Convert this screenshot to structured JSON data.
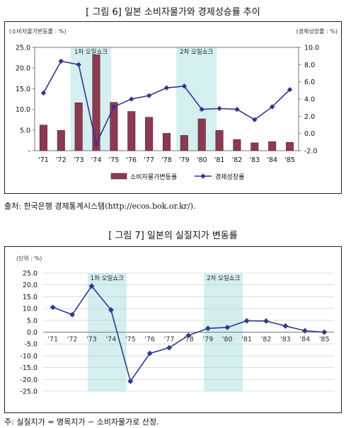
{
  "figure1": {
    "caption": "[ 그림 6]  일본 소비자물가와 경제성승률 추이",
    "source_note": "출처:  한국은행  경제통계시스템(http://ecos.bok.or.kr/).",
    "colors": {
      "bar": "#8b3a52",
      "bar_edge": "#5a2030",
      "line": "#3b2f8f",
      "shade": "#d3efef",
      "bg": "#ffffff"
    },
    "chart_data": {
      "type": "bar",
      "left_axis_label": "(소비자물가변동률 : %)",
      "right_axis_label": "(경제성장률 : %)",
      "categories": [
        "'71",
        "'72",
        "'73",
        "'74",
        "'75",
        "'76",
        "'77",
        "'78",
        "'79",
        "'80",
        "'81",
        "'82",
        "'83",
        "'84",
        "'85"
      ],
      "ylim_left": [
        0,
        25
      ],
      "left_ticks": [
        "25.0",
        "20.0",
        "15.0",
        "10.0",
        "5.0",
        "-"
      ],
      "left_tick_values": [
        25,
        20,
        15,
        10,
        5,
        0
      ],
      "ylim_right": [
        -2,
        10
      ],
      "right_ticks": [
        "10.0",
        "8.0",
        "6.0",
        "4.0",
        "2.0",
        "0.0",
        "-2.0"
      ],
      "right_tick_values": [
        10,
        8,
        6,
        4,
        2,
        0,
        -2
      ],
      "series": [
        {
          "name": "소비자물가변동률",
          "kind": "bar",
          "axis": "left",
          "values": [
            6.2,
            4.9,
            11.6,
            23.2,
            11.7,
            9.5,
            8.1,
            4.2,
            3.7,
            7.7,
            4.9,
            2.7,
            1.9,
            2.2,
            2.0
          ]
        },
        {
          "name": "경제성장률",
          "kind": "line",
          "axis": "right",
          "values": [
            4.7,
            8.4,
            8.0,
            -1.2,
            3.1,
            4.0,
            4.4,
            5.3,
            5.5,
            2.8,
            2.9,
            2.8,
            1.6,
            3.1,
            5.1
          ]
        }
      ],
      "shaded_periods": [
        {
          "label": "1차 오일쇼크",
          "from": "'73",
          "to": "'75"
        },
        {
          "label": "2차 오일쇼크",
          "from": "'79",
          "to": "'81"
        }
      ],
      "legend": {
        "placement": "bottom-center"
      }
    }
  },
  "figure2": {
    "caption": "[ 그림 7]  일본의  실질지가  변동률",
    "footnote": "주:  실질지가 = 명목지가 − 소비자물가로  산정.",
    "colors": {
      "line": "#2e3a8c",
      "shade": "#d3efef",
      "grid": "#c8c8c8"
    },
    "chart_data": {
      "type": "line",
      "ylabel": "(단위 : %)",
      "categories": [
        "'71",
        "'72",
        "'73",
        "'74",
        "'75",
        "'76",
        "'77",
        "'78",
        "'79",
        "'80",
        "'81",
        "'82",
        "'83",
        "'84",
        "'85"
      ],
      "ylim": [
        -25,
        25
      ],
      "y_ticks": [
        "25.0",
        "20.0",
        "15.0",
        "10.0",
        "5.0",
        "0.0",
        "-5.0",
        "-10.0",
        "-15.0",
        "-20.0",
        "-25.0"
      ],
      "y_tick_values": [
        25,
        20,
        15,
        10,
        5,
        0,
        -5,
        -10,
        -15,
        -20,
        -25
      ],
      "series": [
        {
          "name": "",
          "values": [
            10.5,
            7.4,
            19.5,
            9.4,
            -20.8,
            -9.0,
            -6.6,
            -1.4,
            1.6,
            2.0,
            4.8,
            4.7,
            2.6,
            0.6,
            0.0
          ]
        }
      ],
      "shaded_periods": [
        {
          "label": "1차 오일쇼크",
          "from": "'73",
          "to": "'75"
        },
        {
          "label": "2차 오일쇼크",
          "from": "'79",
          "to": "'81"
        }
      ],
      "grid": true
    }
  }
}
